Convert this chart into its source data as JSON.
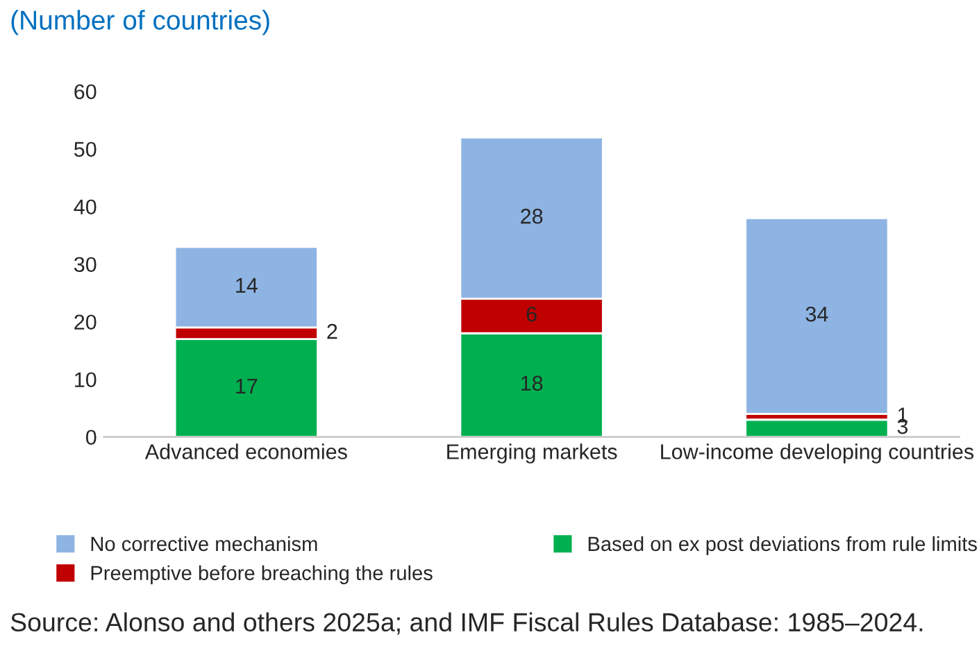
{
  "chart_data": {
    "type": "bar",
    "title": "(Number of countries)",
    "categories": [
      "Advanced economies",
      "Emerging markets",
      "Low-income developing countries"
    ],
    "stacked": true,
    "series": [
      {
        "name": "Based on ex post deviations from rule limits",
        "color": "#00b050",
        "values": [
          17,
          18,
          3
        ]
      },
      {
        "name": "Preemptive before breaching the rules",
        "color": "#c00000",
        "values": [
          2,
          6,
          1
        ]
      },
      {
        "name": "No corrective mechanism",
        "color": "#8eb4e3",
        "values": [
          14,
          28,
          34
        ]
      }
    ],
    "ylim": [
      0,
      60
    ],
    "yticks": [
      0,
      10,
      20,
      30,
      40,
      50,
      60
    ],
    "grid": false,
    "legend": "bottom",
    "data_labels": true,
    "annotations": [
      "Source: Alonso and others 2025a; and IMF Fiscal Rules Database: 1985–2024."
    ]
  }
}
